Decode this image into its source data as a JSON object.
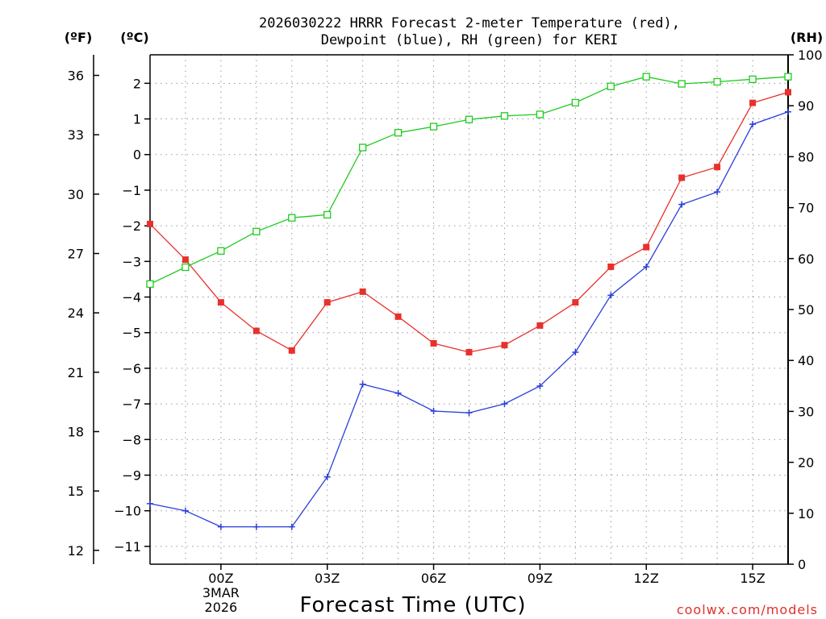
{
  "chart_data": {
    "type": "line",
    "title_line1": "2026030222 HRRR Forecast 2-meter Temperature (red),",
    "title_line2": "Dewpoint (blue), RH (green) for KERI",
    "xlabel": "Forecast Time (UTC)",
    "units": {
      "fahrenheit": "(ºF)",
      "celsius": "(ºC)",
      "rh": "(RH)"
    },
    "x_hours": [
      -2,
      -1,
      0,
      1,
      2,
      3,
      4,
      5,
      6,
      7,
      8,
      9,
      10,
      11,
      12,
      13,
      14,
      15,
      16
    ],
    "x_tick_hours": [
      0,
      3,
      6,
      9,
      12,
      15
    ],
    "x_tick_labels": [
      "00Z",
      "03Z",
      "06Z",
      "09Z",
      "12Z",
      "15Z"
    ],
    "date_label": [
      "3MAR",
      "2026"
    ],
    "xlim": [
      -2,
      16
    ],
    "celsius_ylim": [
      -11.5,
      2.8
    ],
    "celsius_ticks": [
      2,
      1,
      0,
      -1,
      -2,
      -3,
      -4,
      -5,
      -6,
      -7,
      -8,
      -9,
      -10,
      -11
    ],
    "fahrenheit_ticks": [
      36,
      33,
      30,
      27,
      24,
      21,
      18,
      15,
      12
    ],
    "rh_ylim": [
      0,
      100
    ],
    "rh_ticks": [
      100,
      90,
      80,
      70,
      60,
      50,
      40,
      30,
      20,
      10,
      0
    ],
    "series": [
      {
        "name": "Temperature",
        "axis": "celsius",
        "color": "#e8302c",
        "marker": "filled-square",
        "values": [
          -1.95,
          -2.95,
          -4.15,
          -4.95,
          -5.5,
          -4.15,
          -3.85,
          -4.55,
          -5.3,
          -5.55,
          -5.35,
          -4.8,
          -4.15,
          -3.15,
          -2.6,
          -0.65,
          -0.35,
          1.45,
          1.75
        ]
      },
      {
        "name": "Dewpoint",
        "axis": "celsius",
        "color": "#2a3fd8",
        "marker": "plus",
        "values": [
          -9.8,
          -10.0,
          -10.45,
          -10.45,
          -10.45,
          -9.05,
          -6.45,
          -6.7,
          -7.2,
          -7.25,
          -7.0,
          -6.5,
          -5.55,
          -3.95,
          -3.15,
          -1.4,
          -1.05,
          0.85,
          1.2
        ]
      },
      {
        "name": "RH",
        "axis": "rh",
        "color": "#1ecb1e",
        "marker": "open-square",
        "values": [
          55,
          58.3,
          61.5,
          65.3,
          68,
          68.6,
          81.8,
          84.7,
          85.9,
          87.3,
          88,
          88.3,
          90.6,
          93.8,
          95.7,
          94.3,
          94.7,
          95.2,
          95.7
        ]
      }
    ]
  },
  "credit": "coolwx.com/models"
}
